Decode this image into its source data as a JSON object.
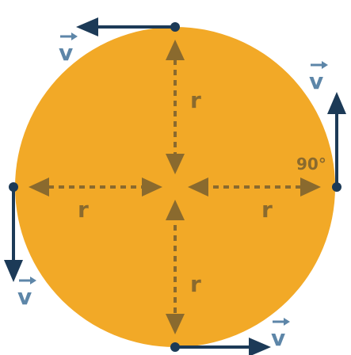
{
  "colors": {
    "disc": "#F2A927",
    "radius_line": "#8A6A2E",
    "velocity": "#1C3A57",
    "point": "#1C3A57",
    "vector_symbol": "#5D86A8",
    "label_on_disc": "#8A6A2E"
  },
  "labels": {
    "radius": "r",
    "velocity": "v",
    "right_angle": "90°"
  }
}
